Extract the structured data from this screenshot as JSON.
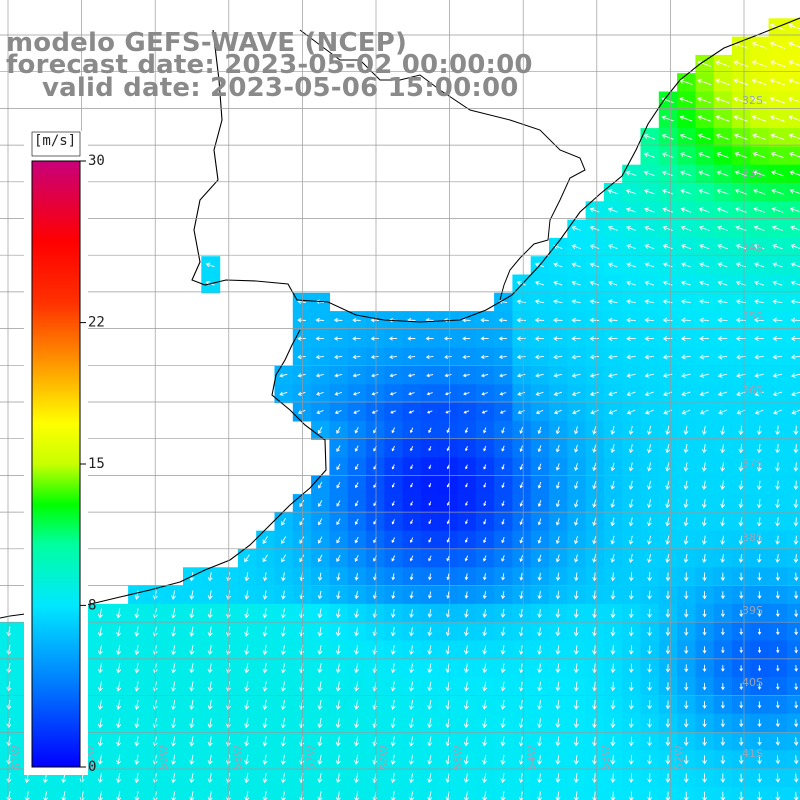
{
  "header": {
    "line1": "modelo GEFS-WAVE (NCEP)",
    "line2": "forecast date: 2023-05-02 00:00:00",
    "line3": "valid date: 2023-05-06 15:00:00"
  },
  "colorbar": {
    "unit": "[m/s]",
    "min": 0,
    "max": 30,
    "ticks": [
      "30",
      "22",
      "15",
      "8",
      "0"
    ],
    "tick_values": [
      30,
      22,
      15,
      8,
      0
    ],
    "color_stops": [
      {
        "value": 0,
        "color": "#0000ff"
      },
      {
        "value": 4,
        "color": "#0078ff"
      },
      {
        "value": 8,
        "color": "#00e8ff"
      },
      {
        "value": 11,
        "color": "#00ffa0"
      },
      {
        "value": 13,
        "color": "#00ff00"
      },
      {
        "value": 15,
        "color": "#c8ff00"
      },
      {
        "value": 17,
        "color": "#ffff00"
      },
      {
        "value": 20,
        "color": "#ff9600"
      },
      {
        "value": 23,
        "color": "#ff3000"
      },
      {
        "value": 26,
        "color": "#ff0000"
      },
      {
        "value": 30,
        "color": "#c8007a"
      }
    ]
  },
  "map": {
    "field": "wind speed and direction",
    "lat_labels": [
      "32S",
      "33S",
      "34S",
      "35S",
      "36S",
      "37S",
      "38S",
      "39S",
      "40S",
      "41S"
    ],
    "lon_labels": [
      "61W",
      "60W",
      "59W",
      "58W",
      "57W",
      "56W",
      "55W",
      "54W",
      "53W",
      "52W"
    ],
    "land_color": "#ffffff",
    "grid_color": "#9a9a9a",
    "coast_color": "#000000",
    "arrow_color": "#ffffff"
  }
}
